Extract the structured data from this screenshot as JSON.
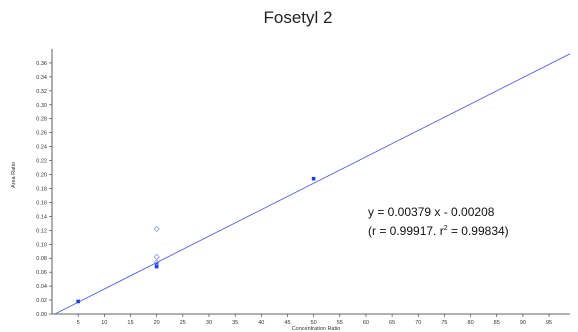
{
  "chart_data": {
    "type": "scatter",
    "title": "Fosetyl 2",
    "xlabel": "Concentration Ratio",
    "ylabel": "Area Ratio",
    "xlim": [
      0,
      99
    ],
    "ylim": [
      0,
      0.38
    ],
    "x_ticks": [
      5,
      10,
      15,
      20,
      25,
      30,
      35,
      40,
      45,
      50,
      55,
      60,
      65,
      70,
      75,
      80,
      85,
      90,
      95
    ],
    "y_ticks": [
      0.0,
      0.02,
      0.04,
      0.06,
      0.08,
      0.1,
      0.12,
      0.14,
      0.16,
      0.18,
      0.2,
      0.22,
      0.24,
      0.26,
      0.28,
      0.3,
      0.32,
      0.34,
      0.36
    ],
    "y_tick_labels": [
      "0.00",
      "0.02",
      "0.04",
      "0.06",
      "0.08",
      "0.10",
      "0.12",
      "0.14",
      "0.16",
      "0.18",
      "0.20",
      "0.22",
      "0.24",
      "0.26",
      "0.28",
      "0.30",
      "0.32",
      "0.34",
      "0.36"
    ],
    "series": [
      {
        "marker": "filled-square",
        "color": "#1f3fe0",
        "points": [
          {
            "x": 5,
            "y": 0.018
          },
          {
            "x": 20,
            "y": 0.068
          },
          {
            "x": 20,
            "y": 0.071
          },
          {
            "x": 50,
            "y": 0.194
          }
        ]
      },
      {
        "marker": "open-diamond",
        "color": "#8a9cf0",
        "points": [
          {
            "x": 20,
            "y": 0.122
          },
          {
            "x": 20,
            "y": 0.082
          },
          {
            "x": 20,
            "y": 0.074
          }
        ]
      }
    ],
    "regression": {
      "slope": 0.00379,
      "intercept": -0.00208,
      "color": "#5566dd",
      "equation_line1": "y = 0.00379 x - 0.00208",
      "equation_line2_prefix": "(r = 0.99917. r",
      "equation_line2_sup": "2",
      "equation_line2_suffix": " = 0.99834)"
    },
    "grid": false,
    "legend": "none"
  }
}
